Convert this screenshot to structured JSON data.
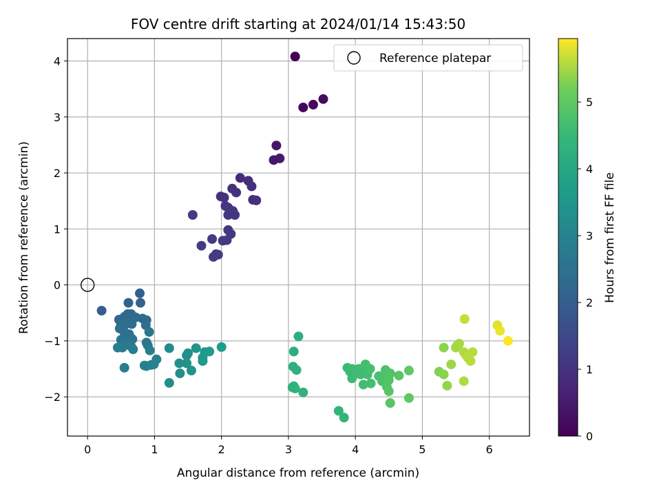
{
  "chart_data": {
    "type": "scatter",
    "title": "FOV centre drift starting at 2024/01/14 15:43:50",
    "xlabel": "Angular distance from reference (arcmin)",
    "ylabel": "Rotation from reference (arcmin)",
    "xlim": [
      -0.3,
      6.6
    ],
    "ylim": [
      -2.7,
      4.4
    ],
    "xticks": [
      0,
      1,
      2,
      3,
      4,
      5,
      6
    ],
    "yticks": [
      -2,
      -1,
      0,
      1,
      2,
      3,
      4
    ],
    "grid": true,
    "legend": {
      "placement": "top-right",
      "entries": [
        "Reference platepar"
      ]
    },
    "reference_point": {
      "x": 0,
      "y": 0
    },
    "colorbar": {
      "label": "Hours from first FF file",
      "colormap": "viridis",
      "range": [
        0,
        5.95
      ],
      "ticks": [
        0,
        1,
        2,
        3,
        4,
        5
      ]
    },
    "points": [
      [
        3.1,
        4.08,
        0.0
      ],
      [
        3.22,
        3.17,
        0.1
      ],
      [
        3.37,
        3.22,
        0.15
      ],
      [
        3.52,
        3.32,
        0.2
      ],
      [
        2.82,
        2.49,
        0.4
      ],
      [
        2.78,
        2.23,
        0.45
      ],
      [
        2.87,
        2.26,
        0.45
      ],
      [
        2.28,
        1.91,
        0.8
      ],
      [
        2.4,
        1.86,
        0.85
      ],
      [
        2.45,
        1.76,
        0.9
      ],
      [
        2.16,
        1.72,
        0.9
      ],
      [
        2.22,
        1.65,
        0.95
      ],
      [
        2.47,
        1.52,
        0.9
      ],
      [
        2.52,
        1.51,
        0.9
      ],
      [
        1.99,
        1.58,
        1.0
      ],
      [
        2.04,
        1.56,
        1.0
      ],
      [
        2.06,
        1.41,
        1.05
      ],
      [
        2.1,
        1.38,
        1.05
      ],
      [
        2.17,
        1.32,
        1.05
      ],
      [
        2.1,
        1.25,
        1.05
      ],
      [
        2.2,
        1.25,
        1.05
      ],
      [
        2.1,
        0.98,
        1.1
      ],
      [
        2.14,
        0.91,
        1.1
      ],
      [
        2.02,
        0.79,
        1.15
      ],
      [
        2.08,
        0.8,
        1.15
      ],
      [
        1.57,
        1.25,
        1.2
      ],
      [
        1.7,
        0.7,
        1.2
      ],
      [
        1.86,
        0.82,
        1.2
      ],
      [
        1.88,
        0.5,
        1.2
      ],
      [
        1.92,
        0.55,
        1.2
      ],
      [
        1.95,
        0.54,
        1.2
      ],
      [
        0.21,
        -0.46,
        2.0
      ],
      [
        0.78,
        -0.15,
        2.05
      ],
      [
        0.61,
        -0.32,
        2.1
      ],
      [
        0.79,
        -0.32,
        2.1
      ],
      [
        0.47,
        -0.62,
        2.2
      ],
      [
        0.55,
        -0.57,
        2.25
      ],
      [
        0.6,
        -0.52,
        2.25
      ],
      [
        0.65,
        -0.52,
        2.25
      ],
      [
        0.68,
        -0.58,
        2.3
      ],
      [
        0.72,
        -0.58,
        2.3
      ],
      [
        0.82,
        -0.6,
        2.3
      ],
      [
        0.88,
        -0.63,
        2.3
      ],
      [
        0.5,
        -0.7,
        2.35
      ],
      [
        0.55,
        -0.73,
        2.35
      ],
      [
        0.58,
        -0.68,
        2.35
      ],
      [
        0.62,
        -0.65,
        2.35
      ],
      [
        0.66,
        -0.7,
        2.4
      ],
      [
        0.87,
        -0.72,
        2.4
      ],
      [
        0.48,
        -0.78,
        2.45
      ],
      [
        0.55,
        -0.85,
        2.45
      ],
      [
        0.62,
        -0.88,
        2.5
      ],
      [
        0.65,
        -0.95,
        2.5
      ],
      [
        0.58,
        -0.95,
        2.5
      ],
      [
        0.67,
        -0.97,
        2.55
      ],
      [
        0.5,
        -0.98,
        2.55
      ],
      [
        0.55,
        -1.0,
        2.55
      ],
      [
        0.92,
        -0.84,
        2.6
      ],
      [
        0.88,
        -1.03,
        2.6
      ],
      [
        0.9,
        -1.08,
        2.65
      ],
      [
        0.6,
        -1.03,
        2.65
      ],
      [
        0.65,
        -1.1,
        2.65
      ],
      [
        0.55,
        -1.05,
        2.7
      ],
      [
        0.45,
        -1.12,
        2.8
      ],
      [
        0.52,
        -1.12,
        2.8
      ],
      [
        0.68,
        -1.15,
        2.8
      ],
      [
        0.93,
        -1.17,
        2.85
      ],
      [
        0.55,
        -1.48,
        2.85
      ],
      [
        0.85,
        -1.44,
        2.9
      ],
      [
        0.88,
        -1.45,
        2.9
      ],
      [
        0.95,
        -1.43,
        2.95
      ],
      [
        0.99,
        -1.42,
        3.0
      ],
      [
        1.03,
        -1.33,
        3.0
      ],
      [
        1.22,
        -1.13,
        3.2
      ],
      [
        1.22,
        -1.75,
        3.25
      ],
      [
        1.37,
        -1.4,
        3.3
      ],
      [
        1.38,
        -1.58,
        3.3
      ],
      [
        1.48,
        -1.26,
        3.35
      ],
      [
        1.5,
        -1.22,
        3.35
      ],
      [
        1.48,
        -1.4,
        3.35
      ],
      [
        1.55,
        -1.53,
        3.4
      ],
      [
        1.62,
        -1.13,
        3.45
      ],
      [
        1.72,
        -1.3,
        3.5
      ],
      [
        1.75,
        -1.2,
        3.55
      ],
      [
        1.72,
        -1.36,
        3.55
      ],
      [
        1.82,
        -1.19,
        3.6
      ],
      [
        2.0,
        -1.11,
        3.7
      ],
      [
        3.15,
        -0.92,
        4.2
      ],
      [
        3.08,
        -1.19,
        4.2
      ],
      [
        3.07,
        -1.46,
        4.25
      ],
      [
        3.12,
        -1.52,
        4.25
      ],
      [
        3.06,
        -1.83,
        4.3
      ],
      [
        3.1,
        -1.85,
        4.3
      ],
      [
        3.08,
        -1.81,
        4.3
      ],
      [
        3.22,
        -1.92,
        4.35
      ],
      [
        3.75,
        -2.25,
        4.4
      ],
      [
        3.83,
        -2.37,
        4.4
      ],
      [
        3.88,
        -1.48,
        4.55
      ],
      [
        3.95,
        -1.5,
        4.55
      ],
      [
        3.92,
        -1.55,
        4.55
      ],
      [
        3.95,
        -1.67,
        4.55
      ],
      [
        4.05,
        -1.5,
        4.6
      ],
      [
        4.02,
        -1.58,
        4.6
      ],
      [
        4.08,
        -1.6,
        4.6
      ],
      [
        4.1,
        -1.52,
        4.6
      ],
      [
        4.15,
        -1.42,
        4.65
      ],
      [
        4.12,
        -1.78,
        4.65
      ],
      [
        4.18,
        -1.6,
        4.65
      ],
      [
        4.22,
        -1.5,
        4.7
      ],
      [
        4.23,
        -1.76,
        4.7
      ],
      [
        4.35,
        -1.63,
        4.75
      ],
      [
        4.4,
        -1.72,
        4.75
      ],
      [
        4.45,
        -1.52,
        4.8
      ],
      [
        4.45,
        -1.67,
        4.8
      ],
      [
        4.5,
        -1.62,
        4.8
      ],
      [
        4.5,
        -1.7,
        4.85
      ],
      [
        4.52,
        -1.58,
        4.85
      ],
      [
        4.47,
        -1.82,
        4.85
      ],
      [
        4.5,
        -1.9,
        4.9
      ],
      [
        4.52,
        -2.11,
        4.9
      ],
      [
        4.65,
        -1.62,
        4.95
      ],
      [
        4.8,
        -1.53,
        5.0
      ],
      [
        4.8,
        -2.02,
        5.0
      ],
      [
        5.25,
        -1.55,
        5.3
      ],
      [
        5.32,
        -1.12,
        5.35
      ],
      [
        5.32,
        -1.6,
        5.35
      ],
      [
        5.37,
        -1.8,
        5.4
      ],
      [
        5.43,
        -1.42,
        5.45
      ],
      [
        5.52,
        -1.08,
        5.5
      ],
      [
        5.5,
        -1.12,
        5.5
      ],
      [
        5.55,
        -1.05,
        5.5
      ],
      [
        5.62,
        -1.2,
        5.55
      ],
      [
        5.65,
        -1.25,
        5.55
      ],
      [
        5.62,
        -1.72,
        5.55
      ],
      [
        5.68,
        -1.3,
        5.6
      ],
      [
        5.72,
        -1.36,
        5.6
      ],
      [
        5.75,
        -1.2,
        5.6
      ],
      [
        5.63,
        -0.61,
        5.65
      ],
      [
        6.12,
        -0.72,
        5.8
      ],
      [
        6.16,
        -0.82,
        5.85
      ],
      [
        6.28,
        -1.0,
        5.95
      ]
    ]
  }
}
